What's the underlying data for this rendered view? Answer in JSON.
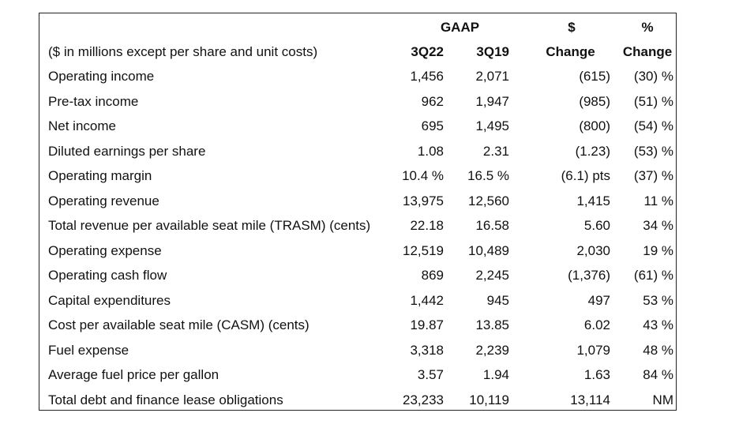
{
  "header": {
    "gaap": "GAAP",
    "dollar_symbol": "$",
    "pct_symbol": "%",
    "units_note": "($ in millions except per share and unit costs)",
    "col_q22": "3Q22",
    "col_q19": "3Q19",
    "col_change_dollar": "Change",
    "col_change_pct": "Change"
  },
  "rows": [
    {
      "label": "Operating income",
      "q22": "1,456",
      "q19": "2,071",
      "chg": "(615)",
      "pct": "(30) %"
    },
    {
      "label": "Pre-tax income",
      "q22": "962",
      "q19": "1,947",
      "chg": "(985)",
      "pct": "(51) %"
    },
    {
      "label": "Net income",
      "q22": "695",
      "q19": "1,495",
      "chg": "(800)",
      "pct": "(54) %"
    },
    {
      "label": "Diluted earnings per share",
      "q22": "1.08",
      "q19": "2.31",
      "chg": "(1.23)",
      "pct": "(53) %"
    },
    {
      "label": "Operating margin",
      "q22": "10.4 %",
      "q19": "16.5 %",
      "chg": "(6.1) pts",
      "pct": "(37) %"
    },
    {
      "label": "Operating revenue",
      "q22": "13,975",
      "q19": "12,560",
      "chg": "1,415",
      "pct": "11 %"
    },
    {
      "label": "Total revenue per available seat mile (TRASM) (cents)",
      "q22": "22.18",
      "q19": "16.58",
      "chg": "5.60",
      "pct": "34 %"
    },
    {
      "label": "Operating expense",
      "q22": "12,519",
      "q19": "10,489",
      "chg": "2,030",
      "pct": "19 %"
    },
    {
      "label": "Operating cash flow",
      "q22": "869",
      "q19": "2,245",
      "chg": "(1,376)",
      "pct": "(61) %"
    },
    {
      "label": "Capital expenditures",
      "q22": "1,442",
      "q19": "945",
      "chg": "497",
      "pct": "53 %"
    },
    {
      "label": "Cost per available seat mile (CASM) (cents)",
      "q22": "19.87",
      "q19": "13.85",
      "chg": "6.02",
      "pct": "43 %"
    },
    {
      "label": "Fuel expense",
      "q22": "3,318",
      "q19": "2,239",
      "chg": "1,079",
      "pct": "48 %"
    },
    {
      "label": "Average fuel price per gallon",
      "q22": "3.57",
      "q19": "1.94",
      "chg": "1.63",
      "pct": "84 %"
    },
    {
      "label": "Total debt and finance lease obligations",
      "q22": "23,233",
      "q19": "10,119",
      "chg": "13,114",
      "pct": "NM"
    }
  ]
}
